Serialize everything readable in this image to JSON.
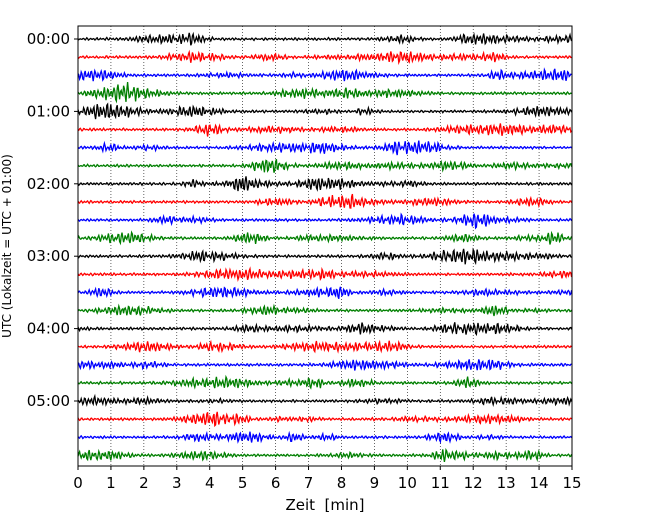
{
  "chart_data": {
    "type": "line",
    "subtype": "helicorder",
    "xlabel": "Zeit  [min]",
    "ylabel": "UTC (Lokalzeit = UTC + 01:00)",
    "xlim": [
      0,
      15
    ],
    "x_ticks": [
      "0",
      "1",
      "2",
      "3",
      "4",
      "5",
      "6",
      "7",
      "8",
      "9",
      "10",
      "11",
      "12",
      "13",
      "14",
      "15"
    ],
    "y_ticks": [
      "00:00",
      "01:00",
      "02:00",
      "03:00",
      "04:00",
      "05:00"
    ],
    "trace_count": 24,
    "trace_interval_minutes": 15,
    "trace_colors": [
      "#000000",
      "#ff0000",
      "#0000ff",
      "#007f00"
    ],
    "grid": "vertical dotted at each minute"
  }
}
